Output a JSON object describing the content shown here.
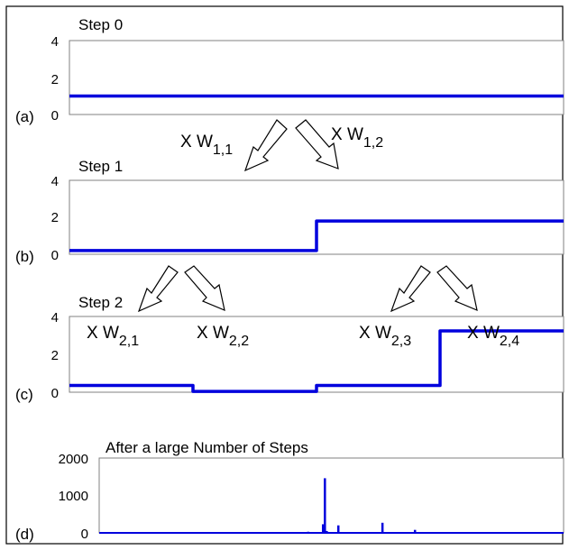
{
  "chart_data": [
    {
      "type": "line",
      "panel_label": "(a)",
      "title": "Step 0",
      "ylim": [
        0,
        4
      ],
      "yticks": [
        "4",
        "2",
        "0"
      ],
      "x": [
        0,
        1
      ],
      "series": [
        {
          "values": [
            1.0,
            1.0
          ]
        }
      ]
    },
    {
      "type": "line",
      "panel_label": "(b)",
      "title": "Step 1",
      "ylim": [
        0,
        4
      ],
      "yticks": [
        "4",
        "2",
        "0"
      ],
      "x": [
        0,
        0.5,
        0.5,
        1
      ],
      "series": [
        {
          "values": [
            0.2,
            0.2,
            1.8,
            1.8
          ]
        }
      ]
    },
    {
      "type": "line",
      "panel_label": "(c)",
      "title": "Step 2",
      "ylim": [
        0,
        4
      ],
      "yticks": [
        "4",
        "2",
        "0"
      ],
      "x": [
        0,
        0.25,
        0.25,
        0.5,
        0.5,
        0.75,
        0.75,
        1
      ],
      "series": [
        {
          "values": [
            0.36,
            0.36,
            0.04,
            0.04,
            0.36,
            0.36,
            3.24,
            3.24
          ]
        }
      ]
    },
    {
      "type": "line",
      "panel_label": "(d)",
      "title": "After a large Number of Steps",
      "ylim": [
        0,
        2000
      ],
      "yticks": [
        "2000",
        "1000",
        "0"
      ],
      "x": [
        0.38,
        0.45,
        0.482,
        0.486,
        0.49,
        0.515,
        0.575,
        0.585,
        0.61,
        0.68
      ],
      "series": [
        {
          "values": [
            5,
            30,
            230,
            1460,
            50,
            200,
            10,
            15,
            270,
            80
          ]
        }
      ]
    }
  ],
  "annotations": {
    "w11": {
      "prefix": "X W",
      "sub": "1,1"
    },
    "w12": {
      "prefix": "X W",
      "sub": "1,2"
    },
    "w21": {
      "prefix": "X W",
      "sub": "2,1"
    },
    "w22": {
      "prefix": "X W",
      "sub": "2,2"
    },
    "w23": {
      "prefix": "X W",
      "sub": "2,3"
    },
    "w24": {
      "prefix": "X W",
      "sub": "2,4"
    }
  },
  "colors": {
    "line": "#0000dd",
    "frame": "#808080",
    "outer": "#000000"
  }
}
